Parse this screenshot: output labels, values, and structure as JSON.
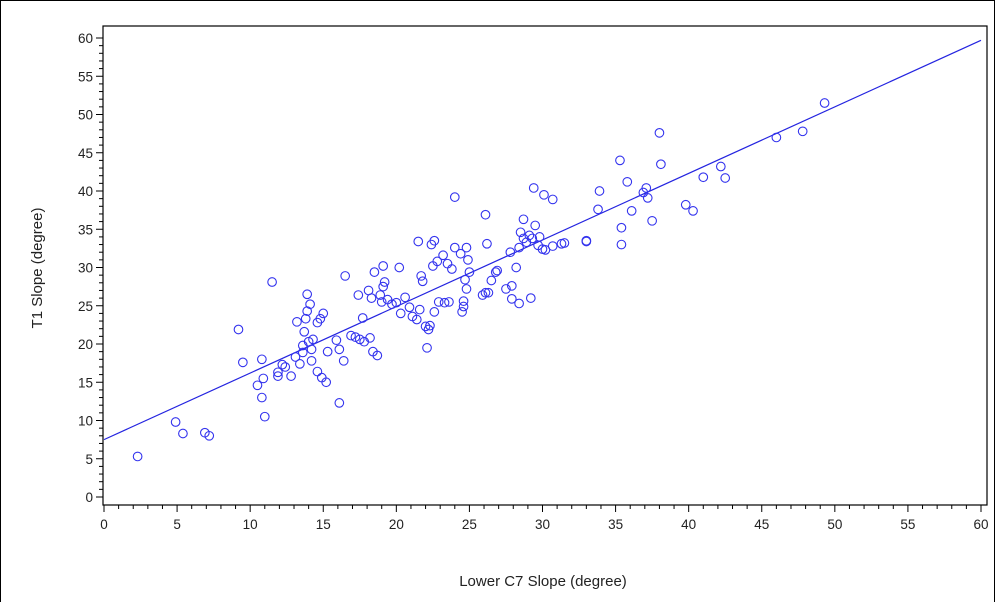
{
  "chart_data": {
    "type": "scatter",
    "title": "",
    "xlabel": "Lower C7 Slope (degree)",
    "ylabel": "T1 Slope (degree)",
    "xlim": [
      0,
      60
    ],
    "ylim": [
      0,
      60
    ],
    "xticks": [
      0,
      5,
      10,
      15,
      20,
      25,
      30,
      35,
      40,
      45,
      50,
      55,
      60
    ],
    "yticks": [
      0,
      5,
      10,
      15,
      20,
      25,
      30,
      35,
      40,
      45,
      50,
      55,
      60
    ],
    "marker_color": "#3333ee",
    "line_color": "#2424e0",
    "fit_line": {
      "x": [
        0,
        60
      ],
      "y": [
        7.5,
        59.7
      ]
    },
    "points": [
      [
        2.3,
        5.3
      ],
      [
        4.9,
        9.8
      ],
      [
        5.4,
        8.3
      ],
      [
        6.9,
        8.4
      ],
      [
        7.2,
        8.0
      ],
      [
        9.2,
        21.9
      ],
      [
        9.5,
        17.6
      ],
      [
        10.5,
        14.6
      ],
      [
        10.8,
        18.0
      ],
      [
        10.8,
        13.0
      ],
      [
        10.9,
        15.5
      ],
      [
        11.0,
        10.5
      ],
      [
        11.5,
        28.1
      ],
      [
        11.9,
        15.8
      ],
      [
        11.9,
        16.3
      ],
      [
        12.2,
        17.3
      ],
      [
        12.4,
        17.0
      ],
      [
        12.8,
        15.8
      ],
      [
        13.1,
        18.3
      ],
      [
        13.2,
        22.9
      ],
      [
        13.4,
        17.4
      ],
      [
        13.6,
        18.9
      ],
      [
        13.6,
        19.8
      ],
      [
        13.7,
        21.6
      ],
      [
        13.8,
        23.3
      ],
      [
        13.9,
        24.3
      ],
      [
        13.9,
        26.5
      ],
      [
        14.0,
        20.3
      ],
      [
        14.1,
        25.2
      ],
      [
        14.2,
        19.3
      ],
      [
        14.2,
        17.8
      ],
      [
        14.3,
        20.6
      ],
      [
        14.6,
        22.8
      ],
      [
        14.6,
        16.4
      ],
      [
        14.8,
        23.3
      ],
      [
        14.9,
        15.6
      ],
      [
        15.0,
        24.0
      ],
      [
        15.2,
        15.0
      ],
      [
        15.3,
        19.0
      ],
      [
        15.9,
        20.5
      ],
      [
        16.1,
        19.3
      ],
      [
        16.1,
        12.3
      ],
      [
        16.4,
        17.8
      ],
      [
        16.5,
        28.9
      ],
      [
        16.9,
        21.1
      ],
      [
        17.2,
        20.9
      ],
      [
        17.4,
        26.4
      ],
      [
        17.5,
        20.6
      ],
      [
        17.7,
        23.4
      ],
      [
        17.8,
        20.3
      ],
      [
        18.1,
        27.0
      ],
      [
        18.2,
        20.8
      ],
      [
        18.3,
        26.0
      ],
      [
        18.4,
        19.0
      ],
      [
        18.5,
        29.4
      ],
      [
        18.7,
        18.5
      ],
      [
        18.9,
        26.4
      ],
      [
        19.0,
        25.5
      ],
      [
        19.1,
        27.5
      ],
      [
        19.1,
        30.2
      ],
      [
        19.2,
        28.1
      ],
      [
        19.4,
        25.8
      ],
      [
        19.7,
        25.2
      ],
      [
        20.0,
        25.4
      ],
      [
        20.2,
        30.0
      ],
      [
        20.3,
        24.0
      ],
      [
        20.6,
        26.1
      ],
      [
        20.9,
        24.8
      ],
      [
        21.1,
        23.6
      ],
      [
        21.4,
        23.2
      ],
      [
        21.5,
        33.4
      ],
      [
        21.6,
        24.5
      ],
      [
        21.7,
        28.9
      ],
      [
        21.8,
        28.2
      ],
      [
        22.0,
        22.3
      ],
      [
        22.1,
        19.5
      ],
      [
        22.2,
        21.9
      ],
      [
        22.3,
        22.4
      ],
      [
        22.4,
        33.0
      ],
      [
        22.5,
        30.2
      ],
      [
        22.6,
        33.5
      ],
      [
        22.6,
        24.2
      ],
      [
        22.8,
        30.8
      ],
      [
        22.9,
        25.5
      ],
      [
        23.2,
        31.6
      ],
      [
        23.3,
        25.4
      ],
      [
        23.5,
        30.5
      ],
      [
        23.6,
        25.5
      ],
      [
        23.8,
        29.8
      ],
      [
        24.0,
        32.6
      ],
      [
        24.0,
        39.2
      ],
      [
        24.4,
        31.8
      ],
      [
        24.5,
        24.2
      ],
      [
        24.6,
        25.6
      ],
      [
        24.6,
        24.9
      ],
      [
        24.7,
        28.4
      ],
      [
        24.8,
        32.6
      ],
      [
        24.8,
        27.2
      ],
      [
        24.9,
        31.0
      ],
      [
        25.0,
        29.4
      ],
      [
        25.9,
        26.4
      ],
      [
        26.1,
        36.9
      ],
      [
        26.1,
        26.7
      ],
      [
        26.2,
        33.1
      ],
      [
        26.3,
        26.7
      ],
      [
        26.5,
        28.3
      ],
      [
        26.8,
        29.4
      ],
      [
        26.9,
        29.6
      ],
      [
        27.5,
        27.2
      ],
      [
        27.8,
        32.0
      ],
      [
        27.9,
        25.9
      ],
      [
        27.9,
        27.6
      ],
      [
        28.2,
        30.0
      ],
      [
        28.4,
        32.6
      ],
      [
        28.4,
        25.3
      ],
      [
        28.5,
        34.6
      ],
      [
        28.7,
        33.8
      ],
      [
        28.7,
        36.3
      ],
      [
        28.9,
        33.3
      ],
      [
        29.1,
        34.2
      ],
      [
        29.2,
        26.0
      ],
      [
        29.3,
        33.8
      ],
      [
        29.4,
        40.4
      ],
      [
        29.5,
        35.5
      ],
      [
        29.7,
        32.9
      ],
      [
        29.8,
        34.0
      ],
      [
        30.0,
        32.4
      ],
      [
        30.1,
        39.5
      ],
      [
        30.2,
        32.3
      ],
      [
        30.7,
        38.9
      ],
      [
        30.7,
        32.8
      ],
      [
        31.3,
        33.1
      ],
      [
        31.5,
        33.2
      ],
      [
        33.0,
        33.5
      ],
      [
        33.0,
        33.4
      ],
      [
        33.8,
        37.6
      ],
      [
        33.9,
        40.0
      ],
      [
        35.3,
        44.0
      ],
      [
        35.4,
        35.2
      ],
      [
        35.4,
        33.0
      ],
      [
        35.8,
        41.2
      ],
      [
        36.1,
        37.4
      ],
      [
        36.9,
        39.8
      ],
      [
        37.1,
        40.4
      ],
      [
        37.2,
        39.1
      ],
      [
        37.5,
        36.1
      ],
      [
        38.0,
        47.6
      ],
      [
        38.1,
        43.5
      ],
      [
        39.8,
        38.2
      ],
      [
        40.3,
        37.4
      ],
      [
        41.0,
        41.8
      ],
      [
        42.2,
        43.2
      ],
      [
        42.5,
        41.7
      ],
      [
        46.0,
        47.0
      ],
      [
        47.8,
        47.8
      ],
      [
        49.3,
        51.5
      ]
    ]
  }
}
